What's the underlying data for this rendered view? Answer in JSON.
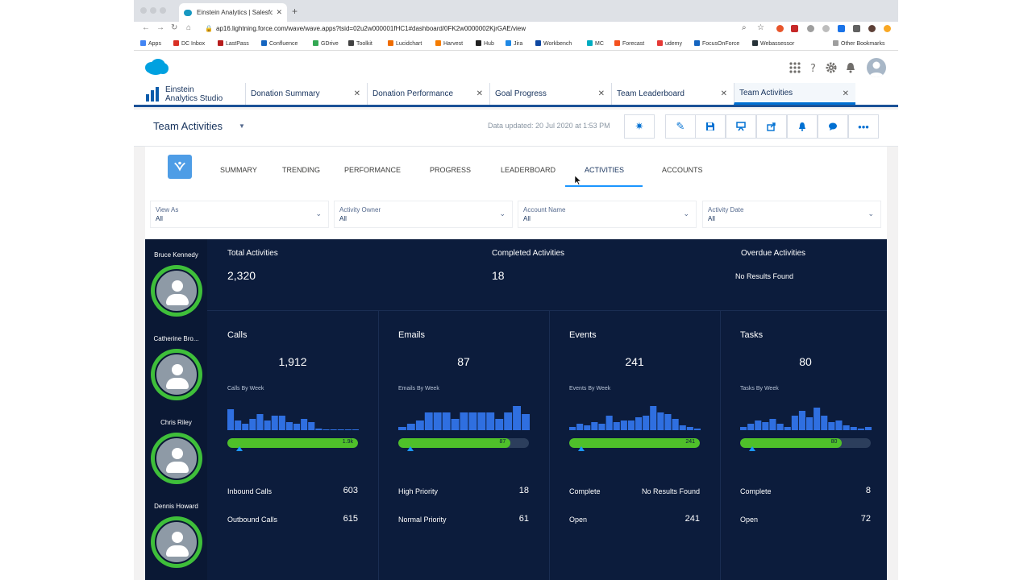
{
  "browser": {
    "tab_title": "Einstein Analytics | Salesforce",
    "url": "ap16.lightning.force.com/wave/wave.apps?tsid=02u2w000001fHC1#dashboard/0FK2w0000002KjrGAE/view",
    "bookmarks": [
      "Apps",
      "DC Inbox",
      "LastPass",
      "Confluence",
      "GDrive",
      "Toolkit",
      "Lucidchart",
      "Harvest",
      "Hub",
      "Jira",
      "Workbench",
      "MC",
      "Forecast",
      "udemy",
      "FocusOnForce",
      "Webassessor"
    ],
    "other_bookmarks": "Other Bookmarks"
  },
  "app": {
    "name_line1": "Einstein",
    "name_line2": "Analytics Studio",
    "tabs": [
      {
        "label": "Donation Summary"
      },
      {
        "label": "Donation Performance"
      },
      {
        "label": "Goal Progress"
      },
      {
        "label": "Team Leaderboard"
      },
      {
        "label": "Team Activities"
      }
    ]
  },
  "dashboard": {
    "title": "Team Activities",
    "updated": "Data updated: 20 Jul 2020 at 1:53 PM",
    "nav": [
      "SUMMARY",
      "TRENDING",
      "PERFORMANCE",
      "PROGRESS",
      "LEADERBOARD",
      "ACTIVITIES",
      "ACCOUNTS"
    ],
    "filters": [
      {
        "label": "View As",
        "value": "All"
      },
      {
        "label": "Activity Owner",
        "value": "All"
      },
      {
        "label": "Account Name",
        "value": "All"
      },
      {
        "label": "Activity Date",
        "value": "All"
      }
    ],
    "people": [
      "Bruce Kennedy",
      "Catherine Bro...",
      "Chris Riley",
      "Dennis Howard"
    ],
    "kpis": [
      {
        "label": "Total Activities",
        "value": "2,320"
      },
      {
        "label": "Completed Activities",
        "value": "18"
      },
      {
        "label": "Overdue Activities",
        "value": "No Results Found"
      }
    ],
    "cards": [
      {
        "label": "Calls",
        "value": "1,912",
        "week_label": "Calls By Week",
        "bar_label": "1.9k",
        "fill": 1.0,
        "rows": [
          {
            "label": "Inbound Calls",
            "value": "603"
          },
          {
            "label": "Outbound Calls",
            "value": "615"
          }
        ]
      },
      {
        "label": "Emails",
        "value": "87",
        "week_label": "Emails By Week",
        "bar_label": "87",
        "fill": 0.86,
        "rows": [
          {
            "label": "High Priority",
            "value": "18"
          },
          {
            "label": "Normal Priority",
            "value": "61"
          }
        ]
      },
      {
        "label": "Events",
        "value": "241",
        "week_label": "Events By Week",
        "bar_label": "241",
        "fill": 1.0,
        "rows": [
          {
            "label": "Complete",
            "value": "No Results Found"
          },
          {
            "label": "Open",
            "value": "241"
          }
        ]
      },
      {
        "label": "Tasks",
        "value": "80",
        "week_label": "Tasks By Week",
        "bar_label": "80",
        "fill": 0.78,
        "rows": [
          {
            "label": "Complete",
            "value": "8"
          },
          {
            "label": "Open",
            "value": "72"
          }
        ]
      }
    ]
  },
  "colors": {
    "panel": "#0c1c3c",
    "spark": "#2f6fe0",
    "progress": "#4fc02a",
    "ring": "#3fbf3a"
  }
}
